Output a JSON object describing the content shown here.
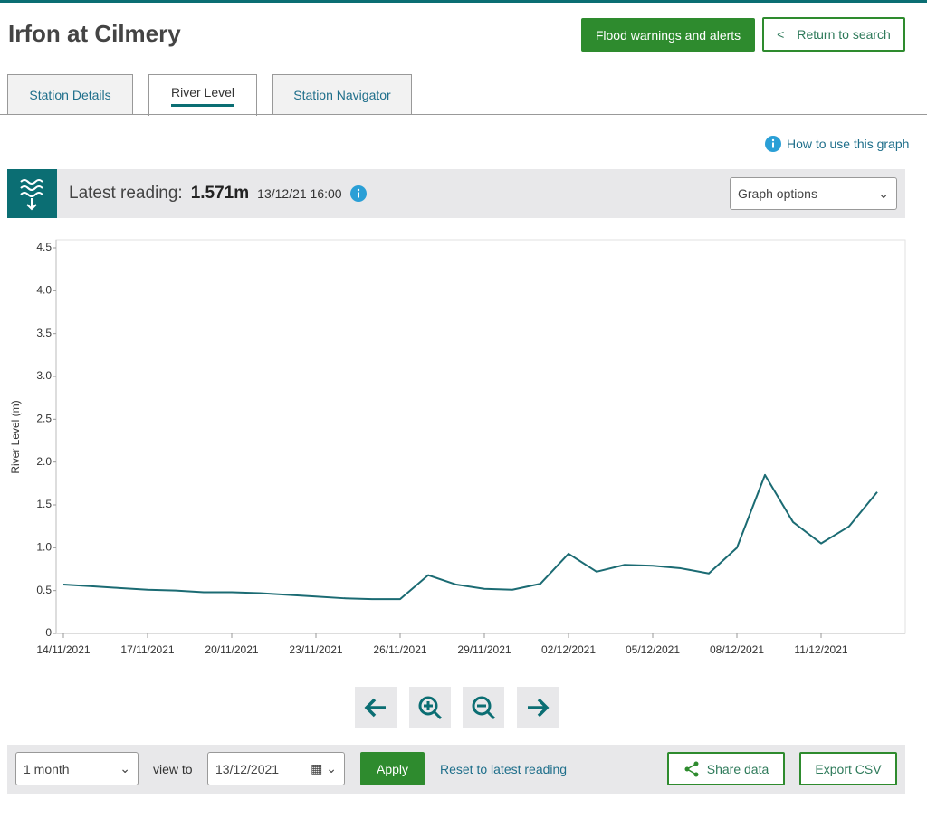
{
  "header": {
    "title": "Irfon at Cilmery",
    "flood_button": "Flood warnings and alerts",
    "return_button": "Return to search"
  },
  "tabs": [
    "Station Details",
    "River Level",
    "Station Navigator"
  ],
  "help_link": "How to use this graph",
  "reading": {
    "label": "Latest reading:",
    "value": "1.571m",
    "time": "13/12/21 16:00",
    "options": "Graph options"
  },
  "chart_data": {
    "type": "line",
    "ylabel": "River Level (m)",
    "color": "#1b6b73",
    "x": [
      "14/11/2021",
      "15/11/2021",
      "16/11/2021",
      "17/11/2021",
      "18/11/2021",
      "19/11/2021",
      "20/11/2021",
      "21/11/2021",
      "22/11/2021",
      "23/11/2021",
      "24/11/2021",
      "25/11/2021",
      "26/11/2021",
      "27/11/2021",
      "28/11/2021",
      "29/11/2021",
      "30/11/2021",
      "01/12/2021",
      "02/12/2021",
      "03/12/2021",
      "04/12/2021",
      "05/12/2021",
      "06/12/2021",
      "07/12/2021",
      "08/12/2021",
      "09/12/2021",
      "10/12/2021",
      "11/12/2021",
      "12/12/2021",
      "13/12/2021"
    ],
    "values": [
      0.57,
      0.55,
      0.53,
      0.51,
      0.5,
      0.48,
      0.48,
      0.47,
      0.45,
      0.43,
      0.41,
      0.4,
      0.4,
      0.68,
      0.57,
      0.52,
      0.51,
      0.58,
      0.93,
      0.72,
      0.8,
      0.79,
      0.76,
      0.7,
      1.0,
      1.85,
      1.3,
      1.05,
      1.25,
      1.65
    ],
    "xticks": [
      "14/11/2021",
      "17/11/2021",
      "20/11/2021",
      "23/11/2021",
      "26/11/2021",
      "29/11/2021",
      "02/12/2021",
      "05/12/2021",
      "08/12/2021",
      "11/12/2021"
    ],
    "ylim": [
      0,
      4.5
    ],
    "yticks": [
      0,
      0.5,
      {
        "value": 1,
        "label": "1.0"
      },
      1.5,
      {
        "value": 2,
        "label": "2.0"
      },
      2.5,
      {
        "value": 3,
        "label": "3.0"
      },
      3.5,
      {
        "value": 4,
        "label": "4.0"
      },
      4.5
    ]
  },
  "controls": {
    "period": "1 month",
    "view_to": "view to",
    "date": "13/12/2021",
    "apply": "Apply",
    "reset": "Reset to latest reading",
    "share": "Share data",
    "export": "Export CSV"
  }
}
